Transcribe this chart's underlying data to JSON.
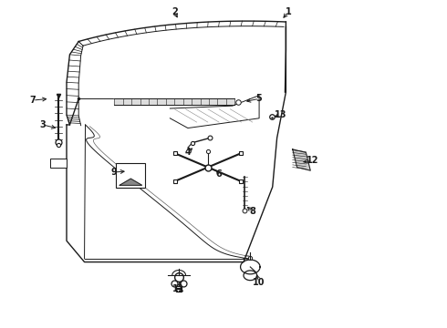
{
  "bg_color": "#ffffff",
  "line_color": "#1a1a1a",
  "figsize": [
    4.9,
    3.6
  ],
  "dpi": 100,
  "labels": {
    "1": [
      0.645,
      0.965,
      0.63,
      0.94
    ],
    "2": [
      0.39,
      0.965,
      0.4,
      0.94
    ],
    "3": [
      0.095,
      0.62,
      0.13,
      0.608
    ],
    "4": [
      0.42,
      0.535,
      0.435,
      0.555
    ],
    "5": [
      0.58,
      0.7,
      0.545,
      0.69
    ],
    "6": [
      0.49,
      0.47,
      0.48,
      0.488
    ],
    "7": [
      0.072,
      0.695,
      0.11,
      0.7
    ],
    "8": [
      0.565,
      0.355,
      0.548,
      0.375
    ],
    "9": [
      0.255,
      0.475,
      0.285,
      0.478
    ],
    "10": [
      0.58,
      0.138,
      0.572,
      0.17
    ],
    "11": [
      0.4,
      0.118,
      0.403,
      0.148
    ],
    "12": [
      0.7,
      0.51,
      0.672,
      0.505
    ],
    "13": [
      0.628,
      0.65,
      0.608,
      0.643
    ]
  }
}
